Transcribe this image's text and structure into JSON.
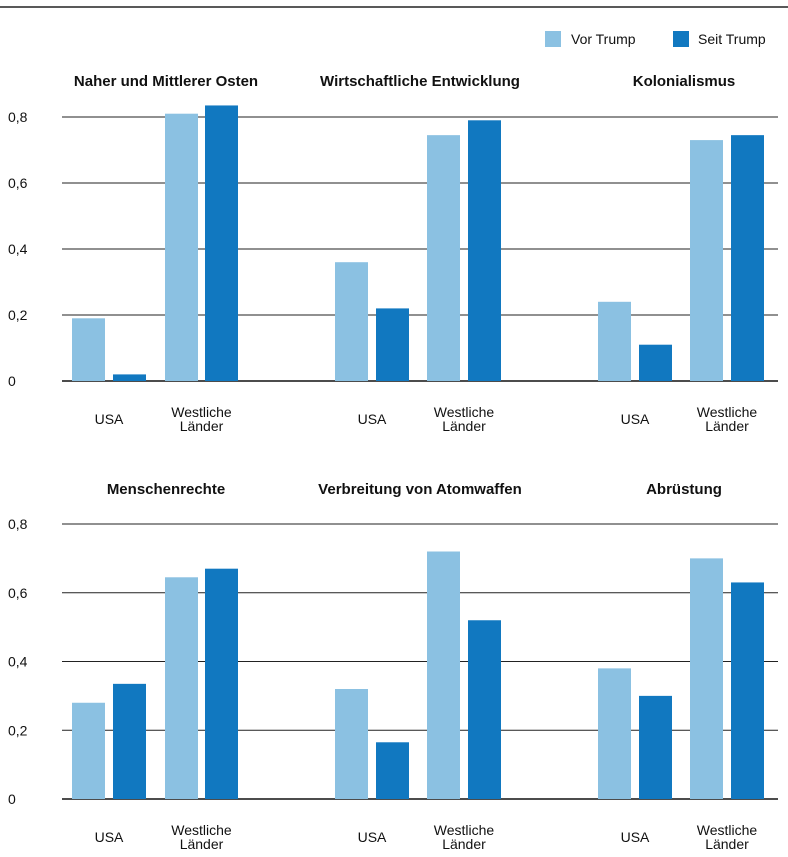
{
  "colors": {
    "vor": "#8bc1e2",
    "seit": "#1178c0",
    "axis": "#111111",
    "grid": "#222222"
  },
  "chart_data": {
    "type": "bar",
    "legend_position": "top-right",
    "legend": [
      "Vor Trump",
      "Seit Trump"
    ],
    "ylim": [
      0,
      0.8
    ],
    "yticks": [
      "0",
      "0,2",
      "0,4",
      "0,6",
      "0,8"
    ],
    "categories": [
      [
        "USA"
      ],
      [
        "Westliche",
        "Länder"
      ]
    ],
    "grid": true,
    "panels": [
      {
        "title": "Naher und Mittlerer Osten",
        "series": [
          {
            "name": "Vor Trump",
            "values": [
              0.19,
              0.81
            ]
          },
          {
            "name": "Seit Trump",
            "values": [
              0.02,
              0.835
            ]
          }
        ]
      },
      {
        "title": "Wirtschaftliche Entwicklung",
        "series": [
          {
            "name": "Vor Trump",
            "values": [
              0.36,
              0.745
            ]
          },
          {
            "name": "Seit Trump",
            "values": [
              0.22,
              0.79
            ]
          }
        ]
      },
      {
        "title": "Kolonialismus",
        "series": [
          {
            "name": "Vor Trump",
            "values": [
              0.24,
              0.73
            ]
          },
          {
            "name": "Seit Trump",
            "values": [
              0.11,
              0.745
            ]
          }
        ]
      },
      {
        "title": "Menschenrechte",
        "series": [
          {
            "name": "Vor Trump",
            "values": [
              0.28,
              0.645
            ]
          },
          {
            "name": "Seit Trump",
            "values": [
              0.335,
              0.67
            ]
          }
        ]
      },
      {
        "title": "Verbreitung von Atomwaffen",
        "series": [
          {
            "name": "Vor Trump",
            "values": [
              0.32,
              0.72
            ]
          },
          {
            "name": "Seit Trump",
            "values": [
              0.165,
              0.52
            ]
          }
        ]
      },
      {
        "title": "Abrüstung",
        "series": [
          {
            "name": "Vor Trump",
            "values": [
              0.38,
              0.7
            ]
          },
          {
            "name": "Seit Trump",
            "values": [
              0.3,
              0.63
            ]
          }
        ]
      }
    ]
  }
}
